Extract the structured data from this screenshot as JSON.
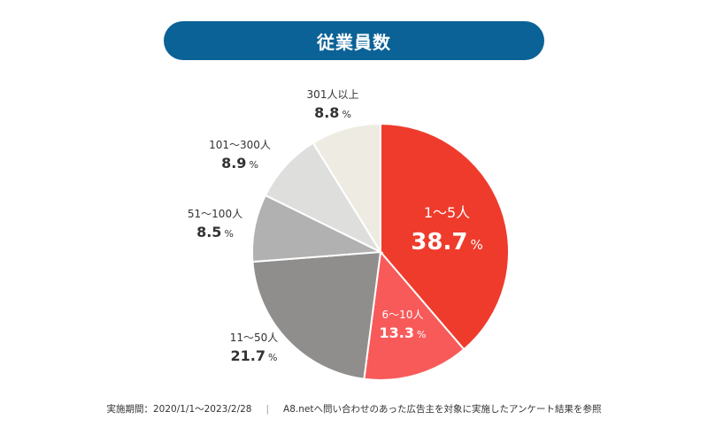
{
  "title": "従業員数",
  "colors": {
    "title_bg": "#0b6296",
    "label_dark": "#333333",
    "label_light": "#ffffff"
  },
  "chart_data": {
    "type": "pie",
    "unit": "%",
    "slices": [
      {
        "label": "1〜5人",
        "value": 38.7,
        "color": "#ef3b2c"
      },
      {
        "label": "6〜10人",
        "value": 13.3,
        "color": "#f85a5a"
      },
      {
        "label": "11〜50人",
        "value": 21.7,
        "color": "#8f8e8c"
      },
      {
        "label": "51〜100人",
        "value": 8.5,
        "color": "#b1b1b1"
      },
      {
        "label": "101〜300人",
        "value": 8.9,
        "color": "#dededd"
      },
      {
        "label": "301人以上",
        "value": 8.8,
        "color": "#eeece2"
      }
    ]
  },
  "footer": {
    "period": "実施期間：2020/1/1〜2023/2/28",
    "separator": "|",
    "note": "A8.netへ問い合わせのあった広告主を対象に実施したアンケート結果を参照"
  }
}
